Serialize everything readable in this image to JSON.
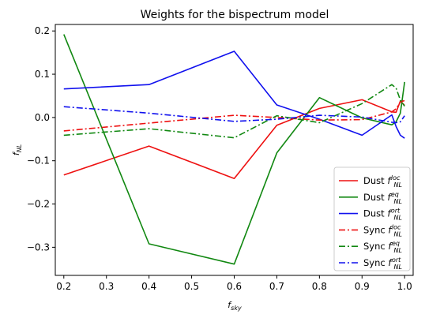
{
  "chart_data": {
    "type": "line",
    "title": "Weights for the bispectrum model",
    "xlabel": {
      "main": "f",
      "sub": "sky"
    },
    "ylabel": {
      "main": "f",
      "sub": "NL"
    },
    "xlim": [
      0.18,
      1.02
    ],
    "ylim": [
      -0.365,
      0.215
    ],
    "xticks": [
      0.2,
      0.3,
      0.4,
      0.5,
      0.6,
      0.7,
      0.8,
      0.9,
      1.0
    ],
    "xtick_labels": [
      "0.2",
      "0.3",
      "0.4",
      "0.5",
      "0.6",
      "0.7",
      "0.8",
      "0.9",
      "1.0"
    ],
    "yticks": [
      -0.3,
      -0.2,
      -0.1,
      0.0,
      0.1,
      0.2
    ],
    "ytick_labels": [
      "−0.3",
      "−0.2",
      "−0.1",
      "0.0",
      "0.1",
      "0.2"
    ],
    "grid": false,
    "legend_position": "lower-right",
    "series": [
      {
        "prefix": "Dust",
        "sup": "loc",
        "sub": "NL",
        "color": "#ee1111",
        "dash": "solid",
        "x": [
          0.2,
          0.4,
          0.6,
          0.7,
          0.8,
          0.9,
          0.97,
          0.98,
          0.99,
          1.0
        ],
        "y": [
          -0.133,
          -0.066,
          -0.141,
          -0.018,
          0.021,
          0.041,
          0.013,
          0.012,
          0.038,
          0.028
        ]
      },
      {
        "prefix": "Dust",
        "sup": "eq",
        "sub": "NL",
        "color": "#118811",
        "dash": "solid",
        "x": [
          0.2,
          0.4,
          0.6,
          0.7,
          0.8,
          0.9,
          0.97,
          0.98,
          0.99,
          1.0
        ],
        "y": [
          0.192,
          -0.292,
          -0.339,
          -0.082,
          0.046,
          -0.001,
          -0.017,
          -0.01,
          0.01,
          0.082
        ]
      },
      {
        "prefix": "Dust",
        "sup": "ort",
        "sub": "NL",
        "color": "#1111ee",
        "dash": "solid",
        "x": [
          0.2,
          0.4,
          0.6,
          0.7,
          0.8,
          0.9,
          0.97,
          0.98,
          0.99,
          1.0
        ],
        "y": [
          0.066,
          0.076,
          0.153,
          0.029,
          -0.004,
          -0.041,
          0.006,
          -0.021,
          -0.041,
          -0.048
        ]
      },
      {
        "prefix": "Sync",
        "sup": "loc",
        "sub": "NL",
        "color": "#ee1111",
        "dash": "dashdot",
        "x": [
          0.2,
          0.4,
          0.6,
          0.7,
          0.8,
          0.9,
          0.97,
          0.98,
          0.99,
          1.0
        ],
        "y": [
          -0.031,
          -0.013,
          0.005,
          0.0,
          -0.006,
          -0.005,
          0.013,
          0.02,
          0.036,
          0.039
        ]
      },
      {
        "prefix": "Sync",
        "sup": "eq",
        "sub": "NL",
        "color": "#118811",
        "dash": "dashdot",
        "x": [
          0.2,
          0.4,
          0.6,
          0.7,
          0.8,
          0.9,
          0.97,
          0.98,
          0.99,
          1.0
        ],
        "y": [
          -0.041,
          -0.026,
          -0.047,
          0.004,
          -0.012,
          0.032,
          0.076,
          0.068,
          0.04,
          0.026
        ]
      },
      {
        "prefix": "Sync",
        "sup": "ort",
        "sub": "NL",
        "color": "#1111ee",
        "dash": "dashdot",
        "x": [
          0.2,
          0.4,
          0.6,
          0.7,
          0.8,
          0.9,
          0.97,
          0.98,
          0.99,
          1.0
        ],
        "y": [
          0.025,
          0.01,
          -0.009,
          -0.004,
          0.005,
          0.001,
          -0.011,
          -0.012,
          -0.01,
          0.004
        ]
      }
    ]
  }
}
